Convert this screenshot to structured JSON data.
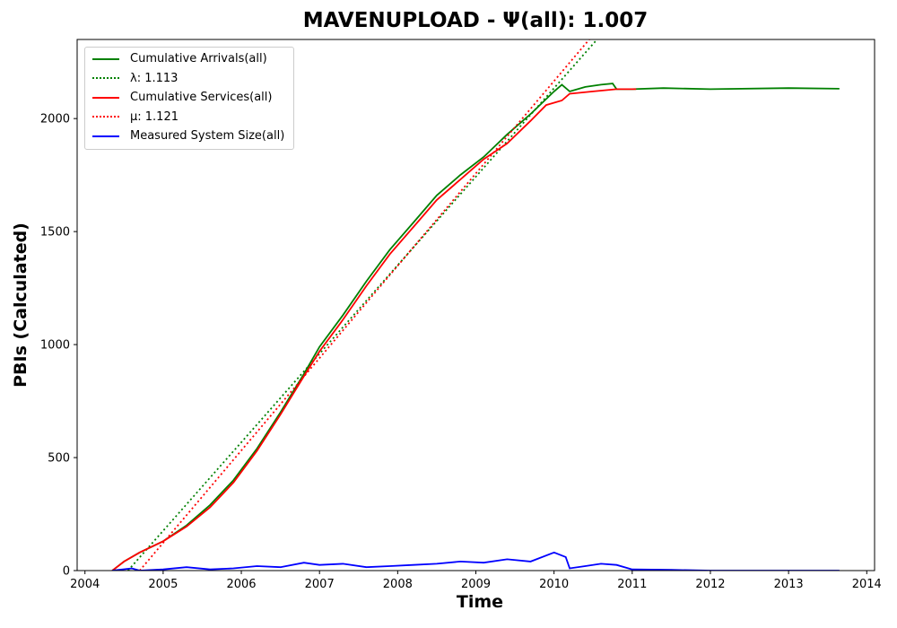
{
  "chart_data": {
    "type": "line",
    "title": "MAVENUPLOAD -  Ψ(all): 1.007",
    "xlabel": "Time",
    "ylabel": "PBIs (Calculated)",
    "xlim": [
      2003.9,
      2014.1
    ],
    "ylim": [
      0,
      2350
    ],
    "xticks": [
      2004,
      2005,
      2006,
      2007,
      2008,
      2009,
      2010,
      2011,
      2012,
      2013,
      2014
    ],
    "yticks": [
      0,
      500,
      1000,
      1500,
      2000
    ],
    "grid": false,
    "legend_position": "top-left",
    "series": [
      {
        "name": "Cumulative Arrivals(all)",
        "color": "#008000",
        "style": "solid",
        "x": [
          2004.35,
          2004.5,
          2004.7,
          2005.0,
          2005.3,
          2005.6,
          2005.9,
          2006.2,
          2006.5,
          2006.8,
          2007.0,
          2007.3,
          2007.6,
          2007.9,
          2008.2,
          2008.5,
          2008.8,
          2009.1,
          2009.4,
          2009.7,
          2010.0,
          2010.1,
          2010.2,
          2010.4,
          2010.6,
          2010.75,
          2010.8,
          2011.0,
          2011.4,
          2012.0,
          2013.0,
          2013.65
        ],
        "y": [
          0,
          40,
          80,
          130,
          200,
          290,
          400,
          540,
          700,
          870,
          990,
          1130,
          1280,
          1420,
          1540,
          1660,
          1750,
          1830,
          1930,
          2020,
          2120,
          2150,
          2120,
          2140,
          2150,
          2155,
          2130,
          2130,
          2135,
          2130,
          2135,
          2132
        ]
      },
      {
        "name": "λ: 1.113",
        "color": "#008000",
        "style": "dotted",
        "x": [
          2004.55,
          2010.55
        ],
        "y": [
          0,
          2350
        ]
      },
      {
        "name": "Cumulative Services(all)",
        "color": "#ff0000",
        "style": "solid",
        "x": [
          2004.35,
          2004.5,
          2004.7,
          2005.0,
          2005.3,
          2005.6,
          2005.9,
          2006.2,
          2006.5,
          2006.8,
          2007.0,
          2007.3,
          2007.6,
          2007.9,
          2008.2,
          2008.5,
          2008.8,
          2009.1,
          2009.4,
          2009.7,
          2009.9,
          2010.1,
          2010.2,
          2010.5,
          2010.8,
          2011.05
        ],
        "y": [
          0,
          40,
          80,
          130,
          195,
          280,
          390,
          530,
          690,
          860,
          970,
          1110,
          1260,
          1400,
          1520,
          1640,
          1730,
          1820,
          1890,
          1990,
          2060,
          2080,
          2110,
          2120,
          2130,
          2130
        ]
      },
      {
        "name": "μ: 1.121",
        "color": "#ff0000",
        "style": "dotted",
        "x": [
          2004.7,
          2010.45
        ],
        "y": [
          0,
          2350
        ]
      },
      {
        "name": "Measured System Size(all)",
        "color": "#0000ff",
        "style": "solid",
        "x": [
          2004.35,
          2004.6,
          2004.7,
          2005.0,
          2005.3,
          2005.6,
          2005.9,
          2006.2,
          2006.5,
          2006.8,
          2007.0,
          2007.3,
          2007.6,
          2007.9,
          2008.2,
          2008.5,
          2008.8,
          2009.1,
          2009.4,
          2009.7,
          2010.0,
          2010.15,
          2010.2,
          2010.4,
          2010.6,
          2010.8,
          2011.0,
          2011.5,
          2012.0,
          2013.0,
          2013.65
        ],
        "y": [
          0,
          10,
          0,
          5,
          15,
          5,
          10,
          20,
          15,
          35,
          25,
          30,
          15,
          20,
          25,
          30,
          40,
          35,
          50,
          40,
          80,
          60,
          10,
          20,
          30,
          25,
          5,
          3,
          0,
          0,
          0
        ]
      }
    ]
  }
}
